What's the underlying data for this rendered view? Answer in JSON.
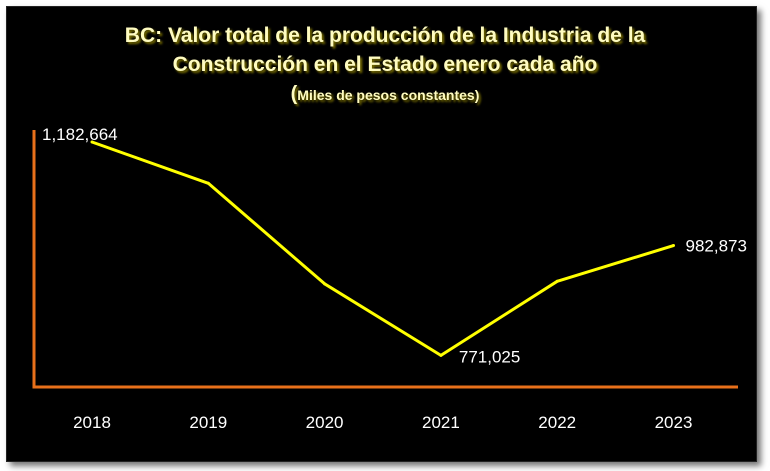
{
  "chart_data": {
    "type": "line",
    "title": "BC: Valor total de la producción de la Industria de la Construcción en el Estado enero cada año",
    "title_lines": [
      "BC: Valor total de la producción de la Industria de la",
      "Construcción en el Estado enero cada año"
    ],
    "subtitle": "Miles de pesos constantes)",
    "subtitle_open_paren": "(",
    "xlabel": "",
    "ylabel": "",
    "categories": [
      "2018",
      "2019",
      "2020",
      "2021",
      "2022",
      "2023"
    ],
    "series": [
      {
        "values": [
          1182664,
          1103000,
          909000,
          771025,
          914000,
          982873
        ]
      }
    ],
    "data_labels": [
      {
        "index": 0,
        "text": "1,182,664"
      },
      {
        "index": 3,
        "text": "771,025"
      },
      {
        "index": 5,
        "text": "982,873"
      }
    ],
    "ylim": [
      710000,
      1200000
    ],
    "grid": false,
    "legend": "none",
    "colors": {
      "background": "#000000",
      "line": "#ffff00",
      "axis": "#e8701a",
      "title": "#fffcc0",
      "labels": "#ffffff"
    }
  }
}
